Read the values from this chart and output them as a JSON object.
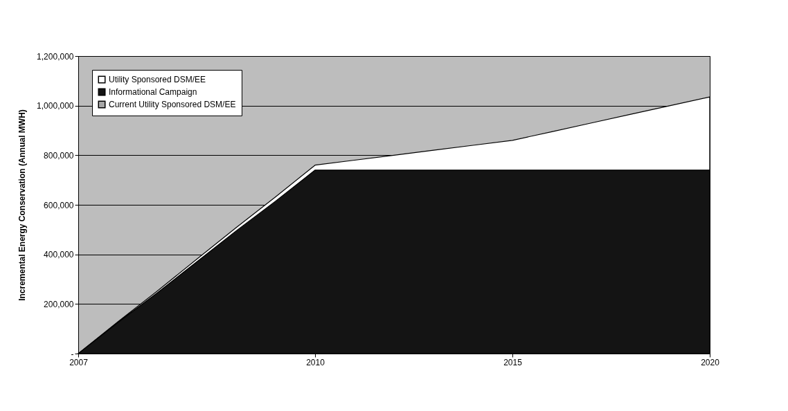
{
  "chart_data": {
    "type": "area",
    "stacked": true,
    "ylabel": "Incremental Energy Conservation (Annual MWH)",
    "categories": [
      "2007",
      null,
      null,
      null,
      null,
      null,
      "2010",
      null,
      null,
      null,
      null,
      "2015",
      null,
      null,
      null,
      null,
      "2020"
    ],
    "series": [
      {
        "name": "Current Utility Sponsored DSM/EE",
        "color": "#a8a8a8",
        "values": [
          null,
          null,
          null,
          null,
          null,
          null,
          null,
          null,
          null,
          null,
          null,
          null,
          null,
          null,
          null,
          null,
          null
        ]
      },
      {
        "name": "Informational Campaign",
        "color": "#141414",
        "values": [
          0,
          125000,
          245000,
          370000,
          495000,
          615000,
          740000,
          740000,
          740000,
          740000,
          740000,
          740000,
          740000,
          740000,
          740000,
          740000,
          740000
        ]
      },
      {
        "name": "Utility Sponsored DSM/EE",
        "color": "#ffffff",
        "values": [
          0,
          3000,
          7000,
          10000,
          13000,
          17000,
          20000,
          40000,
          60000,
          80000,
          100000,
          120000,
          155000,
          190000,
          225000,
          260000,
          295000
        ]
      }
    ],
    "ylim": [
      0,
      1200000
    ],
    "yticks": [
      {
        "value": 0,
        "label": "-"
      },
      {
        "value": 200000,
        "label": "200,000"
      },
      {
        "value": 400000,
        "label": "400,000"
      },
      {
        "value": 600000,
        "label": "600,000"
      },
      {
        "value": 800000,
        "label": "800,000"
      },
      {
        "value": 1000000,
        "label": "1,000,000"
      },
      {
        "value": 1200000,
        "label": "1,200,000"
      }
    ],
    "grid": "y",
    "legend": "top left"
  }
}
